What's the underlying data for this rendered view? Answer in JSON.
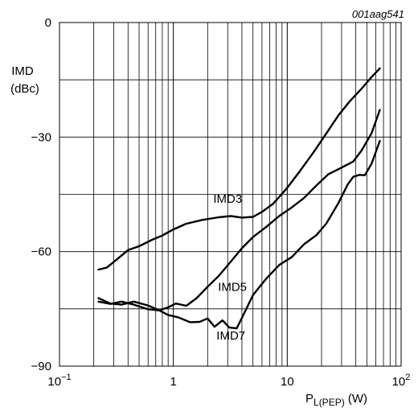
{
  "chart_data": {
    "type": "line",
    "figure_id": "001aag541",
    "ylabel_line1": "IMD",
    "ylabel_line2": "(dBc)",
    "xlabel_main": "P",
    "xlabel_sub": "L(PEP)",
    "xlabel_unit": " (W)",
    "x_scale": "log",
    "xlim": [
      0.1,
      100
    ],
    "ylim": [
      -90,
      0
    ],
    "grid": true,
    "x_ticks": [
      {
        "value": 0.1,
        "base": "10",
        "exp": "−1"
      },
      {
        "value": 1,
        "base": "1",
        "exp": ""
      },
      {
        "value": 10,
        "base": "10",
        "exp": ""
      },
      {
        "value": 100,
        "base": "10",
        "exp": "2"
      }
    ],
    "y_ticks": [
      {
        "value": 0,
        "label": "0"
      },
      {
        "value": -30,
        "label": "−30"
      },
      {
        "value": -60,
        "label": "−60"
      },
      {
        "value": -90,
        "label": "−90"
      }
    ],
    "series": [
      {
        "name": "IMD3",
        "points": [
          [
            0.22,
            -64.7
          ],
          [
            0.26,
            -64.2
          ],
          [
            0.32,
            -62.0
          ],
          [
            0.4,
            -59.6
          ],
          [
            0.5,
            -58.6
          ],
          [
            0.65,
            -56.9
          ],
          [
            0.8,
            -55.8
          ],
          [
            1.0,
            -54.2
          ],
          [
            1.3,
            -52.7
          ],
          [
            1.8,
            -51.7
          ],
          [
            2.5,
            -51.0
          ],
          [
            3.2,
            -50.7
          ],
          [
            4.0,
            -51.1
          ],
          [
            5.0,
            -50.9
          ],
          [
            6.0,
            -49.6
          ],
          [
            7.5,
            -47.5
          ],
          [
            10,
            -43.3
          ],
          [
            13,
            -38.8
          ],
          [
            17,
            -34.0
          ],
          [
            22,
            -29.1
          ],
          [
            28,
            -24.4
          ],
          [
            35,
            -20.8
          ],
          [
            45,
            -17.3
          ],
          [
            55,
            -14.3
          ],
          [
            65,
            -12.0
          ]
        ]
      },
      {
        "name": "IMD5",
        "points": [
          [
            0.22,
            -72.2
          ],
          [
            0.28,
            -73.6
          ],
          [
            0.35,
            -73.9
          ],
          [
            0.45,
            -73.1
          ],
          [
            0.6,
            -74.1
          ],
          [
            0.75,
            -75.4
          ],
          [
            0.9,
            -74.6
          ],
          [
            1.05,
            -73.6
          ],
          [
            1.3,
            -74.2
          ],
          [
            1.6,
            -72.2
          ],
          [
            2.0,
            -69.2
          ],
          [
            2.5,
            -66.4
          ],
          [
            3.2,
            -62.6
          ],
          [
            4.0,
            -59.1
          ],
          [
            5.0,
            -56.2
          ],
          [
            6.5,
            -53.6
          ],
          [
            8.5,
            -50.7
          ],
          [
            11,
            -48.4
          ],
          [
            14,
            -46.0
          ],
          [
            18,
            -42.7
          ],
          [
            23,
            -39.7
          ],
          [
            30,
            -38.0
          ],
          [
            38,
            -36.4
          ],
          [
            45,
            -33.5
          ],
          [
            55,
            -29.0
          ],
          [
            65,
            -22.9
          ]
        ]
      },
      {
        "name": "IMD7",
        "points": [
          [
            0.22,
            -73.1
          ],
          [
            0.28,
            -73.7
          ],
          [
            0.35,
            -73.1
          ],
          [
            0.45,
            -73.9
          ],
          [
            0.6,
            -75.1
          ],
          [
            0.75,
            -75.4
          ],
          [
            0.9,
            -76.6
          ],
          [
            1.1,
            -77.2
          ],
          [
            1.4,
            -78.5
          ],
          [
            1.7,
            -78.4
          ],
          [
            2.0,
            -77.5
          ],
          [
            2.3,
            -79.7
          ],
          [
            2.7,
            -78.0
          ],
          [
            3.1,
            -79.9
          ],
          [
            3.6,
            -80.1
          ],
          [
            4.1,
            -76.7
          ],
          [
            5.0,
            -71.4
          ],
          [
            6.5,
            -67.2
          ],
          [
            8.5,
            -63.5
          ],
          [
            11,
            -61.4
          ],
          [
            14,
            -58.1
          ],
          [
            18,
            -55.7
          ],
          [
            22,
            -52.7
          ],
          [
            28,
            -47.4
          ],
          [
            34,
            -42.4
          ],
          [
            38,
            -40.4
          ],
          [
            43,
            -39.9
          ],
          [
            48,
            -40.0
          ],
          [
            55,
            -37.0
          ],
          [
            65,
            -31.0
          ]
        ]
      }
    ],
    "series_labels": [
      {
        "series": "IMD3",
        "x": 3.0,
        "y": -47.2
      },
      {
        "series": "IMD5",
        "x": 3.3,
        "y": -70.3
      },
      {
        "series": "IMD7",
        "x": 3.2,
        "y": -83.0
      }
    ],
    "colors": {
      "line": "#000000",
      "grid": "#000000",
      "background": "#ffffff"
    }
  }
}
